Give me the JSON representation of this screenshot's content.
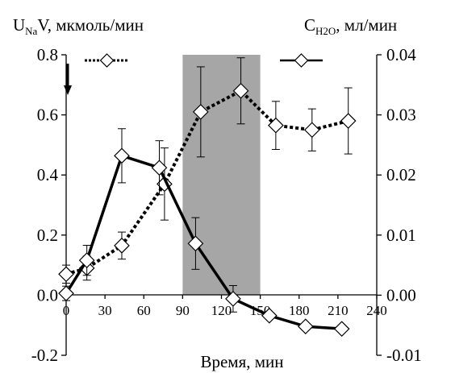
{
  "chart_data": {
    "type": "line",
    "ylabel_left": {
      "main": "U",
      "sub": "Na",
      "rest": "V, мкмоль/мин"
    },
    "ylabel_right": {
      "main": "C",
      "sub": "H2O",
      "rest": ", мл/мин"
    },
    "xlabel": "Время, мин",
    "x_ticks": [
      "0",
      "30",
      "60",
      "90",
      "120",
      "150",
      "180",
      "210",
      "240"
    ],
    "y_left_ticks": [
      "0.8",
      "0.6",
      "0.4",
      "0.2",
      "0.0",
      "-0.2"
    ],
    "y_right_ticks": [
      "0.04",
      "0.03",
      "0.02",
      "0.01",
      "0.00",
      "-0.01"
    ],
    "xlim": [
      0,
      240
    ],
    "ylim_left": [
      -0.2,
      0.8
    ],
    "ylim_right": [
      -0.01,
      0.04
    ],
    "shaded_region": [
      90,
      150
    ],
    "shaded_color": "#a6a6a6",
    "line_color": "#000000",
    "marker_fill": "#ffffff",
    "series": [
      {
        "style": "dotted",
        "axis": "left",
        "x": [
          0,
          16,
          43,
          76,
          104,
          135,
          162,
          190,
          218
        ],
        "y": [
          0.07,
          0.09,
          0.165,
          0.37,
          0.61,
          0.68,
          0.565,
          0.55,
          0.58
        ],
        "err": [
          0.03,
          0.04,
          0.045,
          0.12,
          0.15,
          0.11,
          0.08,
          0.07,
          0.11
        ]
      },
      {
        "style": "solid",
        "axis": "right",
        "x": [
          0,
          16,
          43,
          72,
          100,
          129,
          157,
          185,
          213
        ],
        "y": [
          0.0003,
          0.0058,
          0.0232,
          0.0212,
          0.0086,
          -0.0006,
          -0.0034,
          -0.0052,
          -0.0056
        ],
        "err": [
          0.0012,
          0.0025,
          0.0045,
          0.0045,
          0.0043,
          0.0022,
          0,
          0,
          0
        ]
      }
    ]
  }
}
